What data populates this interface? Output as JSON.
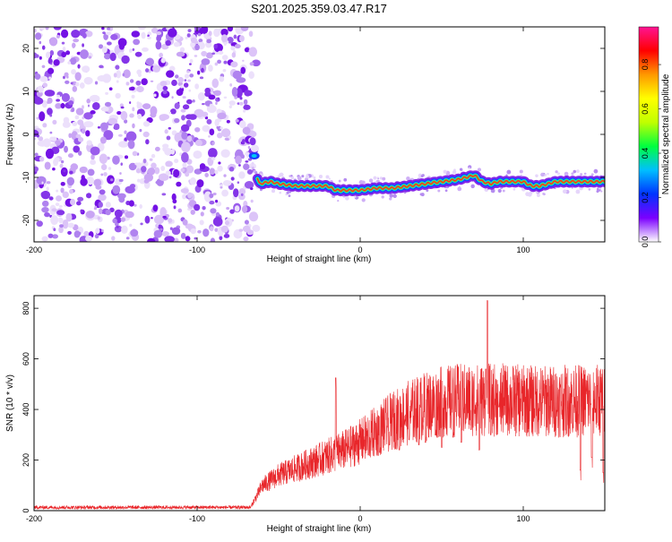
{
  "figure_title": "S201.2025.359.03.47.R17",
  "chart_data": [
    {
      "type": "heatmap",
      "title": "",
      "xlabel": "Height of straight line (km)",
      "ylabel": "Frequency (Hz)",
      "xlim": [
        -200,
        150
      ],
      "ylim": [
        -25,
        25
      ],
      "x_ticks": [
        -200,
        -100,
        0,
        100
      ],
      "y_ticks": [
        20,
        10,
        0,
        -10,
        -20
      ],
      "x_tick_labels": [
        "-200",
        "-100",
        "0",
        "100"
      ],
      "y_tick_labels": [
        "20",
        "10",
        "0",
        "-10",
        "-20"
      ],
      "noise_region_x": [
        -200,
        -67
      ],
      "carrier_start_x": -67,
      "carrier_track": {
        "x": [
          -67,
          -62,
          -55,
          -50,
          -40,
          -30,
          -20,
          -15,
          -10,
          0,
          10,
          20,
          30,
          40,
          50,
          60,
          65,
          70,
          75,
          80,
          85,
          90,
          100,
          105,
          110,
          115,
          120,
          130,
          140,
          150
        ],
        "freq": [
          -5,
          -11.5,
          -11,
          -11.5,
          -12,
          -12,
          -12,
          -13,
          -13,
          -13,
          -12.5,
          -12.5,
          -12,
          -11.5,
          -11,
          -10.5,
          -10,
          -9.5,
          -11,
          -11.5,
          -11,
          -11,
          -11,
          -12,
          -12,
          -11.5,
          -11,
          -11,
          -11,
          -11
        ]
      },
      "colorbar": {
        "label": "Normalized spectral amplitude",
        "range": [
          0,
          0.97
        ],
        "ticks": [
          0.0,
          0.2,
          0.4,
          0.6,
          0.8
        ],
        "tick_labels": [
          "0.0",
          "0.2",
          "0.4",
          "0.6",
          "0.8"
        ],
        "colors": [
          "#ffffff",
          "#7b00ff",
          "#0033ff",
          "#00bfff",
          "#00ff40",
          "#c0ff00",
          "#ffff00",
          "#ff9900",
          "#ff0000",
          "#ff1493"
        ]
      }
    },
    {
      "type": "line",
      "title": "",
      "xlabel": "Height of straight line (km)",
      "ylabel": "SNR (10 * v/v)",
      "xlim": [
        -200,
        150
      ],
      "ylim": [
        0,
        850
      ],
      "x_ticks": [
        -200,
        -100,
        0,
        100
      ],
      "y_ticks": [
        0,
        200,
        400,
        600,
        800
      ],
      "x_tick_labels": [
        "-200",
        "-100",
        "0",
        "100"
      ],
      "y_tick_labels": [
        "0",
        "200",
        "400",
        "600",
        "800"
      ],
      "series_color": "#e8262a",
      "envelope": {
        "x": [
          -200,
          -67,
          -60,
          -50,
          -40,
          -30,
          -20,
          -10,
          0,
          10,
          20,
          30,
          40,
          50,
          60,
          70,
          80,
          90,
          100,
          110,
          120,
          130,
          140,
          150
        ],
        "y": [
          20,
          20,
          120,
          170,
          200,
          230,
          260,
          290,
          330,
          380,
          430,
          470,
          500,
          520,
          530,
          530,
          530,
          530,
          525,
          525,
          525,
          525,
          530,
          530
        ]
      },
      "spikes": [
        {
          "x": -15,
          "y": 525
        },
        {
          "x": 77,
          "y": 560
        },
        {
          "x": 78,
          "y": 830
        },
        {
          "x": 135,
          "y": 160
        },
        {
          "x": 142,
          "y": 210
        },
        {
          "x": 149,
          "y": 150
        }
      ],
      "dropouts": [
        {
          "x": 5,
          "y": 220
        },
        {
          "x": 12,
          "y": 230
        },
        {
          "x": 18,
          "y": 260
        },
        {
          "x": 24,
          "y": 240
        },
        {
          "x": 30,
          "y": 280
        },
        {
          "x": 36,
          "y": 260
        },
        {
          "x": 40,
          "y": 270
        },
        {
          "x": 46,
          "y": 300
        },
        {
          "x": 50,
          "y": 250
        },
        {
          "x": 57,
          "y": 290
        },
        {
          "x": 62,
          "y": 270
        },
        {
          "x": 68,
          "y": 320
        },
        {
          "x": 73,
          "y": 240
        },
        {
          "x": 80,
          "y": 300
        },
        {
          "x": 85,
          "y": 410
        }
      ]
    }
  ]
}
